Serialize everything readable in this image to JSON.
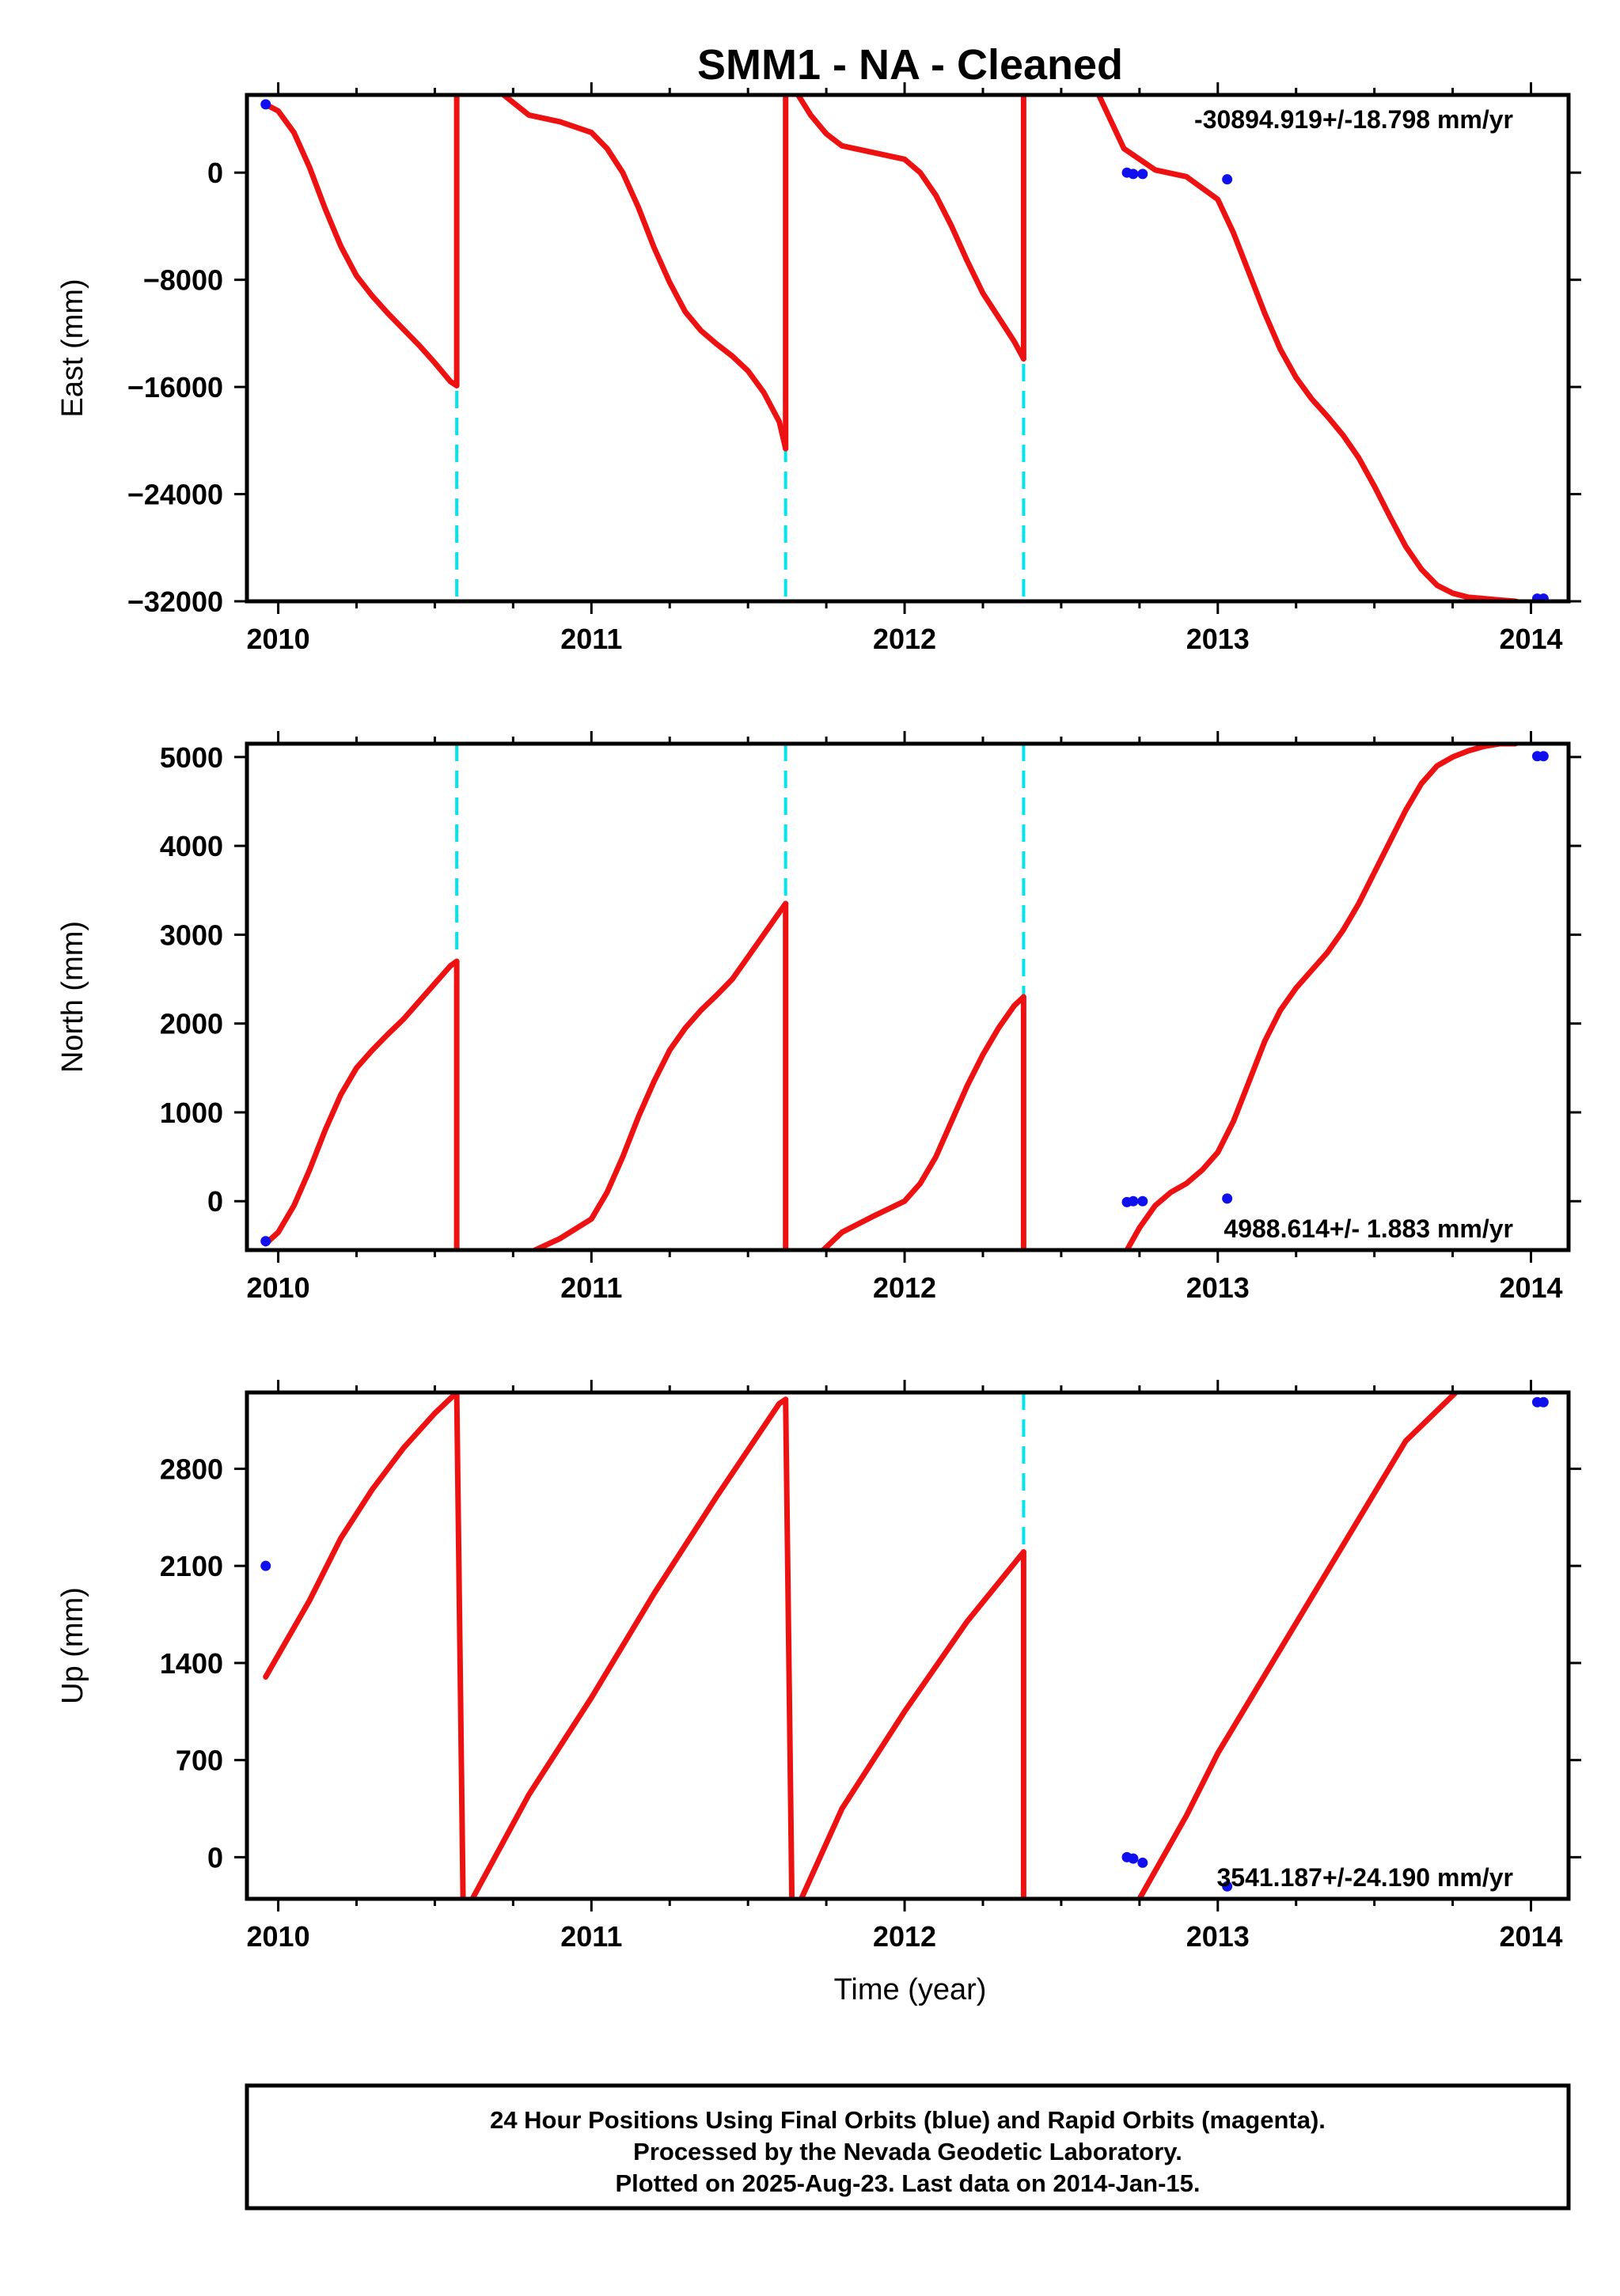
{
  "title": "SMM1  - NA - Cleaned",
  "xlabel": "Time (year)",
  "footer": {
    "lines": [
      "24 Hour Positions Using Final Orbits (blue) and Rapid Orbits (magenta).",
      "Processed by the Nevada Geodetic Laboratory.",
      "Plotted on 2025-Aug-23. Last data on 2014-Jan-15."
    ]
  },
  "colors": {
    "model": "#ee1111",
    "data": "#1010ee",
    "breaks": "#00e5ee",
    "axes": "#000000"
  },
  "chart_data": [
    {
      "type": "line",
      "ylabel": "East (mm)",
      "rate_text": "-30894.919+/-18.798 mm/yr",
      "xlim": [
        2009.9,
        2014.12
      ],
      "ylim": [
        -32000,
        5800
      ],
      "xticks": [
        2010,
        2011,
        2012,
        2013,
        2014
      ],
      "yticks": [
        0,
        -8000,
        -16000,
        -24000,
        -32000
      ],
      "breaks": [
        2010.57,
        2011.62,
        2012.38
      ],
      "series": [
        {
          "x": [
            2009.96,
            2010.0,
            2010.05,
            2010.1,
            2010.15,
            2010.2,
            2010.25,
            2010.3,
            2010.35,
            2010.4,
            2010.45,
            2010.5,
            2010.55,
            2010.57
          ],
          "y": [
            5100,
            4600,
            3000,
            400,
            -2700,
            -5500,
            -7700,
            -9200,
            -10500,
            -11700,
            -12900,
            -14200,
            -15600,
            -15900
          ]
        },
        {
          "x": [
            2010.57,
            2010.57
          ],
          "y": [
            -15900,
            5800
          ]
        },
        {
          "x": [
            2010.72,
            2010.8,
            2010.9,
            2011.0,
            2011.05,
            2011.1,
            2011.15,
            2011.2,
            2011.25,
            2011.3,
            2011.35,
            2011.4,
            2011.45,
            2011.5,
            2011.55,
            2011.6,
            2011.62
          ],
          "y": [
            5800,
            4300,
            3800,
            3000,
            1800,
            0,
            -2600,
            -5600,
            -8200,
            -10400,
            -11800,
            -12800,
            -13700,
            -14800,
            -16400,
            -18600,
            -20600
          ]
        },
        {
          "x": [
            2011.62,
            2011.62
          ],
          "y": [
            -20600,
            5800
          ]
        },
        {
          "x": [
            2011.66,
            2011.7,
            2011.75,
            2011.8,
            2011.9,
            2012.0,
            2012.05,
            2012.1,
            2012.15,
            2012.2,
            2012.25,
            2012.3,
            2012.35,
            2012.38
          ],
          "y": [
            5800,
            4300,
            2900,
            2000,
            1500,
            1000,
            0,
            -1700,
            -4000,
            -6600,
            -9000,
            -10800,
            -12600,
            -13900
          ]
        },
        {
          "x": [
            2012.38,
            2012.38
          ],
          "y": [
            -13900,
            5800
          ]
        },
        {
          "x": [
            2012.62,
            2012.7,
            2012.8,
            2012.9,
            2013.0,
            2013.05,
            2013.1,
            2013.15,
            2013.2,
            2013.25,
            2013.3,
            2013.35,
            2013.4,
            2013.45,
            2013.5,
            2013.55,
            2013.6,
            2013.65,
            2013.7,
            2013.75,
            2013.8,
            2013.85,
            2013.9,
            2013.95,
            2014.0
          ],
          "y": [
            5800,
            1800,
            200,
            -300,
            -2000,
            -4500,
            -7500,
            -10500,
            -13200,
            -15300,
            -16900,
            -18200,
            -19600,
            -21300,
            -23400,
            -25700,
            -27900,
            -29600,
            -30800,
            -31400,
            -31700,
            -31800,
            -31900,
            -32000,
            -32300
          ]
        }
      ],
      "points": {
        "x": [
          2009.96,
          2012.71,
          2012.73,
          2012.76,
          2013.03,
          2014.02,
          2014.04
        ],
        "y": [
          5100,
          0,
          -100,
          -100,
          -500,
          -31800,
          -31800
        ]
      }
    },
    {
      "type": "line",
      "ylabel": "North (mm)",
      "rate_text": "4988.614+/- 1.883 mm/yr",
      "xlim": [
        2009.9,
        2014.12
      ],
      "ylim": [
        -550,
        5150
      ],
      "xticks": [
        2010,
        2011,
        2012,
        2013,
        2014
      ],
      "yticks": [
        0,
        1000,
        2000,
        3000,
        4000,
        5000
      ],
      "breaks": [
        2010.57,
        2011.62,
        2012.38
      ],
      "series": [
        {
          "x": [
            2009.96,
            2010.0,
            2010.05,
            2010.1,
            2010.15,
            2010.2,
            2010.25,
            2010.3,
            2010.35,
            2010.4,
            2010.45,
            2010.5,
            2010.55,
            2010.57
          ],
          "y": [
            -480,
            -350,
            -50,
            350,
            800,
            1200,
            1500,
            1700,
            1880,
            2050,
            2250,
            2450,
            2650,
            2700
          ]
        },
        {
          "x": [
            2010.57,
            2010.57
          ],
          "y": [
            2700,
            -550
          ]
        },
        {
          "x": [
            2010.82,
            2010.9,
            2011.0,
            2011.05,
            2011.1,
            2011.15,
            2011.2,
            2011.25,
            2011.3,
            2011.35,
            2011.4,
            2011.45,
            2011.5,
            2011.55,
            2011.6,
            2011.62
          ],
          "y": [
            -550,
            -420,
            -200,
            100,
            500,
            950,
            1350,
            1700,
            1950,
            2150,
            2320,
            2500,
            2750,
            3000,
            3250,
            3350
          ]
        },
        {
          "x": [
            2011.62,
            2011.62
          ],
          "y": [
            3350,
            -550
          ]
        },
        {
          "x": [
            2011.74,
            2011.8,
            2011.9,
            2012.0,
            2012.05,
            2012.1,
            2012.15,
            2012.2,
            2012.25,
            2012.3,
            2012.35,
            2012.38
          ],
          "y": [
            -550,
            -350,
            -170,
            0,
            200,
            500,
            900,
            1300,
            1650,
            1950,
            2200,
            2300
          ]
        },
        {
          "x": [
            2012.38,
            2012.38
          ],
          "y": [
            2300,
            -550
          ]
        },
        {
          "x": [
            2012.71,
            2012.75,
            2012.8,
            2012.85,
            2012.9,
            2012.95,
            2013.0,
            2013.05,
            2013.1,
            2013.15,
            2013.2,
            2013.25,
            2013.3,
            2013.35,
            2013.4,
            2013.45,
            2013.5,
            2013.55,
            2013.6,
            2013.65,
            2013.7,
            2013.75,
            2013.8,
            2013.85,
            2013.9,
            2013.95
          ],
          "y": [
            -550,
            -300,
            -50,
            100,
            200,
            350,
            550,
            900,
            1350,
            1800,
            2150,
            2400,
            2600,
            2800,
            3050,
            3350,
            3700,
            4050,
            4400,
            4700,
            4900,
            5000,
            5070,
            5120,
            5150,
            5150
          ]
        }
      ],
      "points": {
        "x": [
          2009.96,
          2012.71,
          2012.73,
          2012.76,
          2013.03,
          2014.02,
          2014.04
        ],
        "y": [
          -450,
          -10,
          0,
          0,
          30,
          5010,
          5010
        ]
      }
    },
    {
      "type": "line",
      "ylabel": "Up (mm)",
      "rate_text": "3541.187+/-24.190 mm/yr",
      "xlim": [
        2009.9,
        2014.12
      ],
      "ylim": [
        -300,
        3350
      ],
      "xticks": [
        2010,
        2011,
        2012,
        2013,
        2014
      ],
      "yticks": [
        0,
        700,
        1400,
        2100,
        2800
      ],
      "breaks": [
        2012.38
      ],
      "series": [
        {
          "x": [
            2009.96,
            2010.1,
            2010.2,
            2010.3,
            2010.4,
            2010.5,
            2010.57
          ],
          "y": [
            1300,
            1850,
            2300,
            2650,
            2950,
            3200,
            3350
          ]
        },
        {
          "x": [
            2010.57,
            2010.59
          ],
          "y": [
            3350,
            -300
          ]
        },
        {
          "x": [
            2010.62,
            2010.8,
            2011.0,
            2011.2,
            2011.4,
            2011.6,
            2011.62
          ],
          "y": [
            -300,
            450,
            1150,
            1900,
            2600,
            3270,
            3300
          ]
        },
        {
          "x": [
            2011.62,
            2011.64
          ],
          "y": [
            3300,
            -300
          ]
        },
        {
          "x": [
            2011.67,
            2011.8,
            2012.0,
            2012.2,
            2012.38
          ],
          "y": [
            -300,
            350,
            1050,
            1700,
            2200
          ]
        },
        {
          "x": [
            2012.38,
            2012.38
          ],
          "y": [
            2200,
            -300
          ]
        },
        {
          "x": [
            2012.75,
            2012.9,
            2013.0,
            2013.2,
            2013.4,
            2013.6,
            2013.76
          ],
          "y": [
            -300,
            300,
            750,
            1500,
            2250,
            3000,
            3350
          ]
        }
      ],
      "points": {
        "x": [
          2009.96,
          2012.71,
          2012.73,
          2012.76,
          2013.03,
          2014.02,
          2014.04
        ],
        "y": [
          2100,
          0,
          -10,
          -40,
          -210,
          3280,
          3280
        ]
      }
    }
  ]
}
